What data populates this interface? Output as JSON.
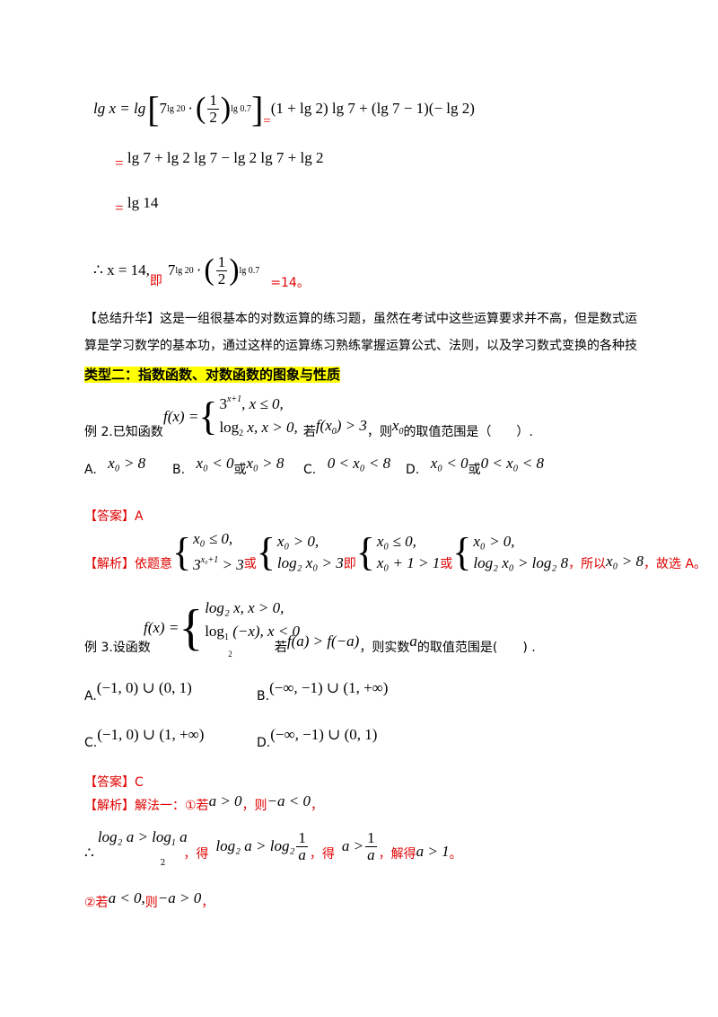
{
  "calc": {
    "line1_lhs": "lg x = lg",
    "line1_seven": "7",
    "line1_exp1": "lg 20",
    "line1_half_num": "1",
    "line1_half_den": "2",
    "line1_exp2": "lg 0.7",
    "line1_eq": "=",
    "line1_rhs": "(1 + lg 2) lg 7 + (lg 7 − 1)(− lg 2)",
    "line2_eq": "=",
    "line2": "lg 7 + lg 2 lg 7 − lg 2 lg 7 + lg 2",
    "line3_eq": "=",
    "line3": "lg 14",
    "line4_prefix": "∴ x = 14,",
    "line4_ji": "即",
    "line4_seven": "7",
    "line4_exp1": "lg 20",
    "line4_half_num": "1",
    "line4_half_den": "2",
    "line4_exp2": "lg 0.7",
    "line4_result": "=14。"
  },
  "summary": {
    "label": "【总结升华】",
    "text": "这是一组很基本的对数运算的练习题，虽然在考试中这些运算要求并不高，但是数式运算是学习数学的基本功，通过这样的运算练习熟练掌握运算公式、法则，以及学习数式变换的各种技巧."
  },
  "type2": {
    "heading": "类型二：指数函数、对数函数的图象与性质"
  },
  "ex2": {
    "fx": "f(x) =",
    "case1": "3",
    "case1_exp": "x+1",
    "case1_cond": ", x ≤ 0,",
    "case2": "log",
    "case2_sub": "2",
    "case2_rest": " x, x > 0,",
    "prefix": "例 2.已知函数",
    "ruo": "若",
    "cond": "f(x",
    "cond_sub": "0",
    "cond_rest": ") > 3",
    "ze": "，则",
    "x0": "x",
    "x0_sub": "0",
    "tail": "的取值范围是（　　）.",
    "options": {
      "a_label": "A.",
      "a": "x₀ > 8",
      "b_label": "B.",
      "b1": "x₀ < 0",
      "b_or": "或",
      "b2": "x₀ > 8",
      "c_label": "C.",
      "c": "0 < x₀ < 8",
      "d_label": "D.",
      "d1": "x₀ < 0",
      "d_or": "或",
      "d2": "0 < x₀ < 8"
    },
    "answer": "【答案】A",
    "analysis_label": "【解析】依题意",
    "sys1_r1": "x₀ ≤ 0,",
    "sys1_r2a": "3",
    "sys1_r2_exp": "x₀+1",
    "sys1_r2b": " > 3",
    "or1": "或",
    "sys2_r1": "x₀ > 0,",
    "sys2_r2": "log₂ x₀ > 3",
    "ji": "即",
    "sys3_r1": "x₀ ≤ 0,",
    "sys3_r2": "x₀ + 1 > 1",
    "or2": "或",
    "sys4_r1": "x₀ > 0,",
    "sys4_r2": "log₂ x₀ > log₂ 8",
    "so": "，所以",
    "concl": "x₀ > 8",
    "end": "，故选 A。"
  },
  "ex3": {
    "fx": "f(x) =",
    "case1": "log₂ x, x > 0,",
    "case2a": "log",
    "case2_sub": "1",
    "case2_subsub": "2",
    "case2b": " (−x), x < 0",
    "prefix": "例 3.设函数",
    "ruo": "若",
    "cond": "f(a) > f(−a)",
    "mid": "，则实数",
    "a": "a",
    "tail": "的取值范围是(　　) .",
    "options": {
      "a_label": "A.",
      "a": "(−1, 0) ∪ (0, 1)",
      "b_label": "B.",
      "b": "(−∞, −1) ∪ (1, +∞)",
      "c_label": "C.",
      "c": "(−1, 0) ∪ (1, +∞)",
      "d_label": "D.",
      "d": "(−∞, −1) ∪ (0, 1)"
    },
    "answer": "【答案】C",
    "analysis_label": "【解析】解法一：①若",
    "a_gt": "a > 0",
    "ze": "，则",
    "neg_lt": "−a < 0",
    "comma": "，",
    "therefore": "∴",
    "ineq1a": "log₂ a > log",
    "ineq1_sub": "1",
    "ineq1_subsub": "2",
    "ineq1b": " a",
    "de1": "，得",
    "ineq2a": "log₂ a > log₂",
    "ineq2_num": "1",
    "ineq2_den": "a",
    "de2": "，得",
    "ineq3a": "a >",
    "ineq3_num": "1",
    "ineq3_den": "a",
    "jiede": "，解得",
    "result": "a > 1",
    "period": "。",
    "case2_label": "②若",
    "case2_a": "a < 0,",
    "case2_ze": "则",
    "case2_neg": "−a > 0",
    "case2_comma": "，"
  }
}
